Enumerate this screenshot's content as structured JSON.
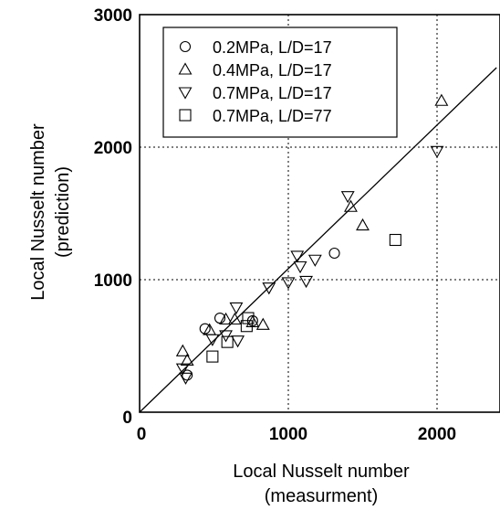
{
  "chart_data": {
    "type": "scatter",
    "xlabel_lines": [
      "Local Nusselt number",
      "(measurment)"
    ],
    "ylabel_lines": [
      "Local Nusselt number",
      "(prediction)"
    ],
    "xlim": [
      0,
      2400
    ],
    "ylim": [
      0,
      3000
    ],
    "xticks": [
      0,
      1000,
      2000
    ],
    "yticks": [
      0,
      1000,
      2000,
      3000
    ],
    "x_tick_labels": [
      "0",
      "1000",
      "2000"
    ],
    "y_tick_labels": [
      "0",
      "1000",
      "2000",
      "3000"
    ],
    "grid": true,
    "legend_position": "top-left",
    "reference_line": {
      "x": [
        0,
        2400
      ],
      "y": [
        0,
        2600
      ]
    },
    "series": [
      {
        "name": "0.2MPa, L/D=17",
        "marker": "circle",
        "points": [
          [
            320,
            280
          ],
          [
            440,
            630
          ],
          [
            540,
            710
          ],
          [
            760,
            690
          ],
          [
            1310,
            1200
          ]
        ]
      },
      {
        "name": "0.4MPa, L/D=17",
        "marker": "triangle-up",
        "points": [
          [
            290,
            460
          ],
          [
            320,
            390
          ],
          [
            470,
            620
          ],
          [
            580,
            700
          ],
          [
            640,
            700
          ],
          [
            760,
            680
          ],
          [
            830,
            660
          ],
          [
            1420,
            1550
          ],
          [
            1500,
            1410
          ],
          [
            2030,
            2350
          ]
        ]
      },
      {
        "name": "0.7MPa, L/D=17",
        "marker": "triangle-down",
        "points": [
          [
            290,
            330
          ],
          [
            310,
            260
          ],
          [
            490,
            550
          ],
          [
            580,
            580
          ],
          [
            650,
            790
          ],
          [
            660,
            540
          ],
          [
            870,
            940
          ],
          [
            1000,
            980
          ],
          [
            1060,
            1180
          ],
          [
            1080,
            1100
          ],
          [
            1120,
            990
          ],
          [
            1180,
            1150
          ],
          [
            1400,
            1630
          ],
          [
            2000,
            1970
          ]
        ]
      },
      {
        "name": "0.7MPa, L/D=77",
        "marker": "square",
        "points": [
          [
            490,
            420
          ],
          [
            590,
            530
          ],
          [
            720,
            650
          ],
          [
            730,
            710
          ],
          [
            1720,
            1300
          ]
        ]
      }
    ]
  }
}
